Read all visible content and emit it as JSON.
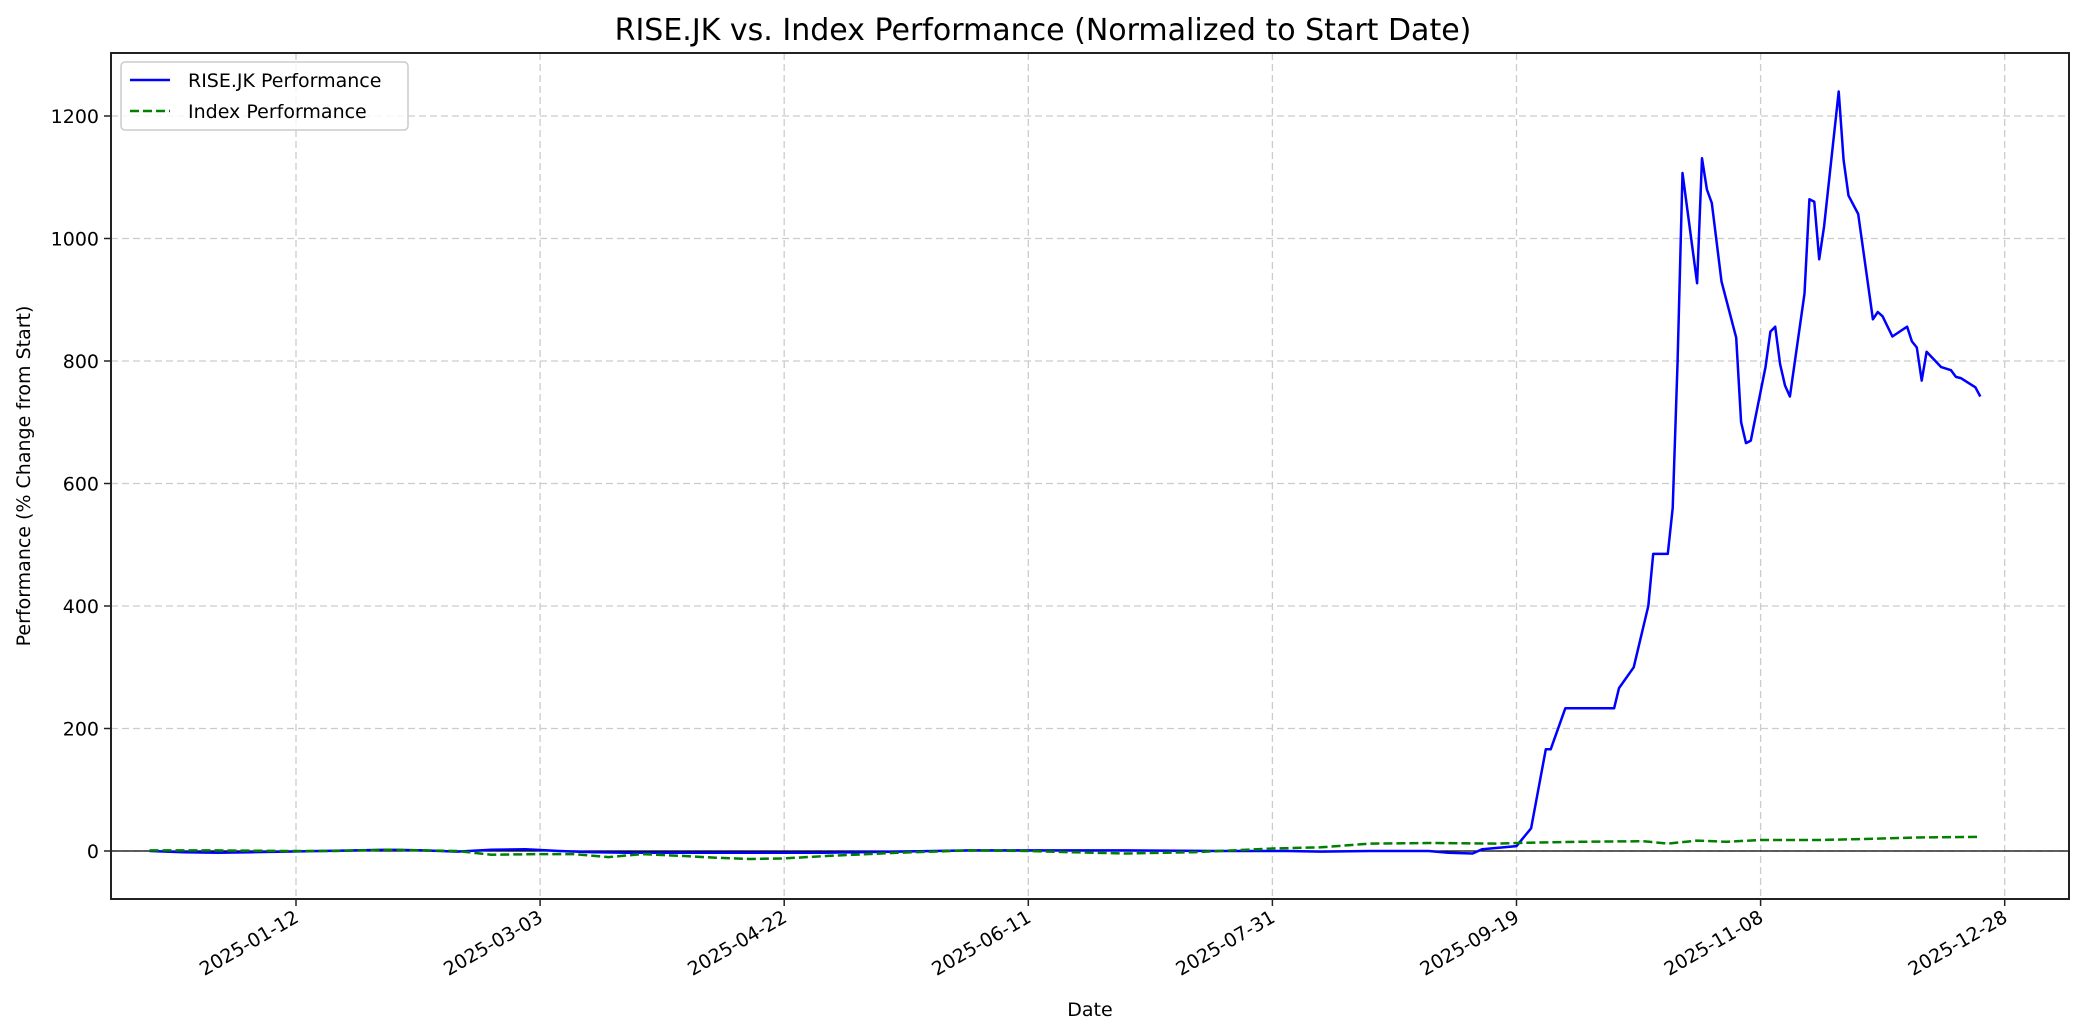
{
  "chart_data": {
    "type": "line",
    "title": "RISE.JK vs. Index Performance (Normalized to Start Date)",
    "xlabel": "Date",
    "ylabel": "Performance (% Change from Start)",
    "xlim": [
      "2024-12-06",
      "2026-01-05"
    ],
    "ylim": [
      -80,
      1300
    ],
    "x_ticks": [
      "2025-01-12",
      "2025-03-03",
      "2025-04-22",
      "2025-06-11",
      "2025-07-31",
      "2025-09-19",
      "2025-11-08",
      "2025-12-28"
    ],
    "y_ticks": [
      0,
      200,
      400,
      600,
      800,
      1000,
      1200
    ],
    "grid": true,
    "legend_position": "upper left",
    "zero_line": true,
    "series": [
      {
        "name": "RISE.JK Performance",
        "color": "#0000ff",
        "style": "solid",
        "points": [
          [
            "2024-12-13",
            0
          ],
          [
            "2024-12-20",
            -2
          ],
          [
            "2024-12-27",
            -3
          ],
          [
            "2025-01-03",
            -2
          ],
          [
            "2025-01-10",
            -1
          ],
          [
            "2025-01-17",
            0
          ],
          [
            "2025-01-24",
            1
          ],
          [
            "2025-01-31",
            2
          ],
          [
            "2025-02-07",
            1
          ],
          [
            "2025-02-14",
            -1
          ],
          [
            "2025-02-21",
            2
          ],
          [
            "2025-02-28",
            3
          ],
          [
            "2025-03-07",
            0
          ],
          [
            "2025-03-14",
            -2
          ],
          [
            "2025-03-21",
            -3
          ],
          [
            "2025-04-01",
            -3
          ],
          [
            "2025-04-15",
            -3
          ],
          [
            "2025-04-30",
            -3
          ],
          [
            "2025-05-15",
            -1
          ],
          [
            "2025-05-30",
            1
          ],
          [
            "2025-06-15",
            1
          ],
          [
            "2025-07-01",
            1
          ],
          [
            "2025-07-20",
            0
          ],
          [
            "2025-08-03",
            0
          ],
          [
            "2025-08-10",
            -1
          ],
          [
            "2025-08-20",
            0
          ],
          [
            "2025-09-01",
            0
          ],
          [
            "2025-09-05",
            -3
          ],
          [
            "2025-09-10",
            -4
          ],
          [
            "2025-09-12",
            3
          ],
          [
            "2025-09-19",
            8
          ],
          [
            "2025-09-22",
            37
          ],
          [
            "2025-09-25",
            166
          ],
          [
            "2025-09-26",
            166
          ],
          [
            "2025-09-29",
            233
          ],
          [
            "2025-10-09",
            233
          ],
          [
            "2025-10-10",
            266
          ],
          [
            "2025-10-13",
            300
          ],
          [
            "2025-10-16",
            400
          ],
          [
            "2025-10-17",
            485
          ],
          [
            "2025-10-20",
            485
          ],
          [
            "2025-10-21",
            560
          ],
          [
            "2025-10-22",
            800
          ],
          [
            "2025-10-23",
            1107
          ],
          [
            "2025-10-26",
            927
          ],
          [
            "2025-10-27",
            1131
          ],
          [
            "2025-10-28",
            1080
          ],
          [
            "2025-10-29",
            1058
          ],
          [
            "2025-10-31",
            930
          ],
          [
            "2025-11-03",
            838
          ],
          [
            "2025-11-04",
            700
          ],
          [
            "2025-11-05",
            666
          ],
          [
            "2025-11-06",
            670
          ],
          [
            "2025-11-09",
            790
          ],
          [
            "2025-11-10",
            848
          ],
          [
            "2025-11-11",
            856
          ],
          [
            "2025-11-12",
            795
          ],
          [
            "2025-11-13",
            760
          ],
          [
            "2025-11-14",
            742
          ],
          [
            "2025-11-17",
            910
          ],
          [
            "2025-11-18",
            1064
          ],
          [
            "2025-11-19",
            1060
          ],
          [
            "2025-11-20",
            966
          ],
          [
            "2025-11-21",
            1020
          ],
          [
            "2025-11-24",
            1240
          ],
          [
            "2025-11-25",
            1128
          ],
          [
            "2025-11-26",
            1070
          ],
          [
            "2025-11-28",
            1040
          ],
          [
            "2025-12-01",
            868
          ],
          [
            "2025-12-02",
            880
          ],
          [
            "2025-12-03",
            873
          ],
          [
            "2025-12-05",
            840
          ],
          [
            "2025-12-08",
            856
          ],
          [
            "2025-12-09",
            832
          ],
          [
            "2025-12-10",
            822
          ],
          [
            "2025-12-11",
            768
          ],
          [
            "2025-12-12",
            815
          ],
          [
            "2025-12-15",
            790
          ],
          [
            "2025-12-17",
            785
          ],
          [
            "2025-12-18",
            774
          ],
          [
            "2025-12-19",
            772
          ],
          [
            "2025-12-22",
            757
          ],
          [
            "2025-12-23",
            742
          ]
        ]
      },
      {
        "name": "Index Performance",
        "color": "#008000",
        "style": "dashed",
        "points": [
          [
            "2024-12-13",
            1
          ],
          [
            "2024-12-27",
            1
          ],
          [
            "2025-01-10",
            0
          ],
          [
            "2025-01-20",
            0
          ],
          [
            "2025-01-31",
            2
          ],
          [
            "2025-02-14",
            0
          ],
          [
            "2025-02-21",
            -6
          ],
          [
            "2025-03-03",
            -5
          ],
          [
            "2025-03-10",
            -5
          ],
          [
            "2025-03-17",
            -10
          ],
          [
            "2025-03-24",
            -5
          ],
          [
            "2025-04-01",
            -8
          ],
          [
            "2025-04-08",
            -11
          ],
          [
            "2025-04-15",
            -13
          ],
          [
            "2025-04-22",
            -12
          ],
          [
            "2025-05-01",
            -8
          ],
          [
            "2025-05-15",
            -3
          ],
          [
            "2025-05-30",
            1
          ],
          [
            "2025-06-11",
            0
          ],
          [
            "2025-06-20",
            -2
          ],
          [
            "2025-07-01",
            -4
          ],
          [
            "2025-07-15",
            -2
          ],
          [
            "2025-07-31",
            4
          ],
          [
            "2025-08-10",
            6
          ],
          [
            "2025-08-20",
            12
          ],
          [
            "2025-09-01",
            13
          ],
          [
            "2025-09-15",
            12
          ],
          [
            "2025-09-19",
            13
          ],
          [
            "2025-10-01",
            15
          ],
          [
            "2025-10-15",
            16
          ],
          [
            "2025-10-20",
            12
          ],
          [
            "2025-10-26",
            17
          ],
          [
            "2025-11-01",
            15
          ],
          [
            "2025-11-08",
            18
          ],
          [
            "2025-11-20",
            18
          ],
          [
            "2025-12-01",
            20
          ],
          [
            "2025-12-10",
            22
          ],
          [
            "2025-12-23",
            23
          ]
        ]
      }
    ]
  }
}
